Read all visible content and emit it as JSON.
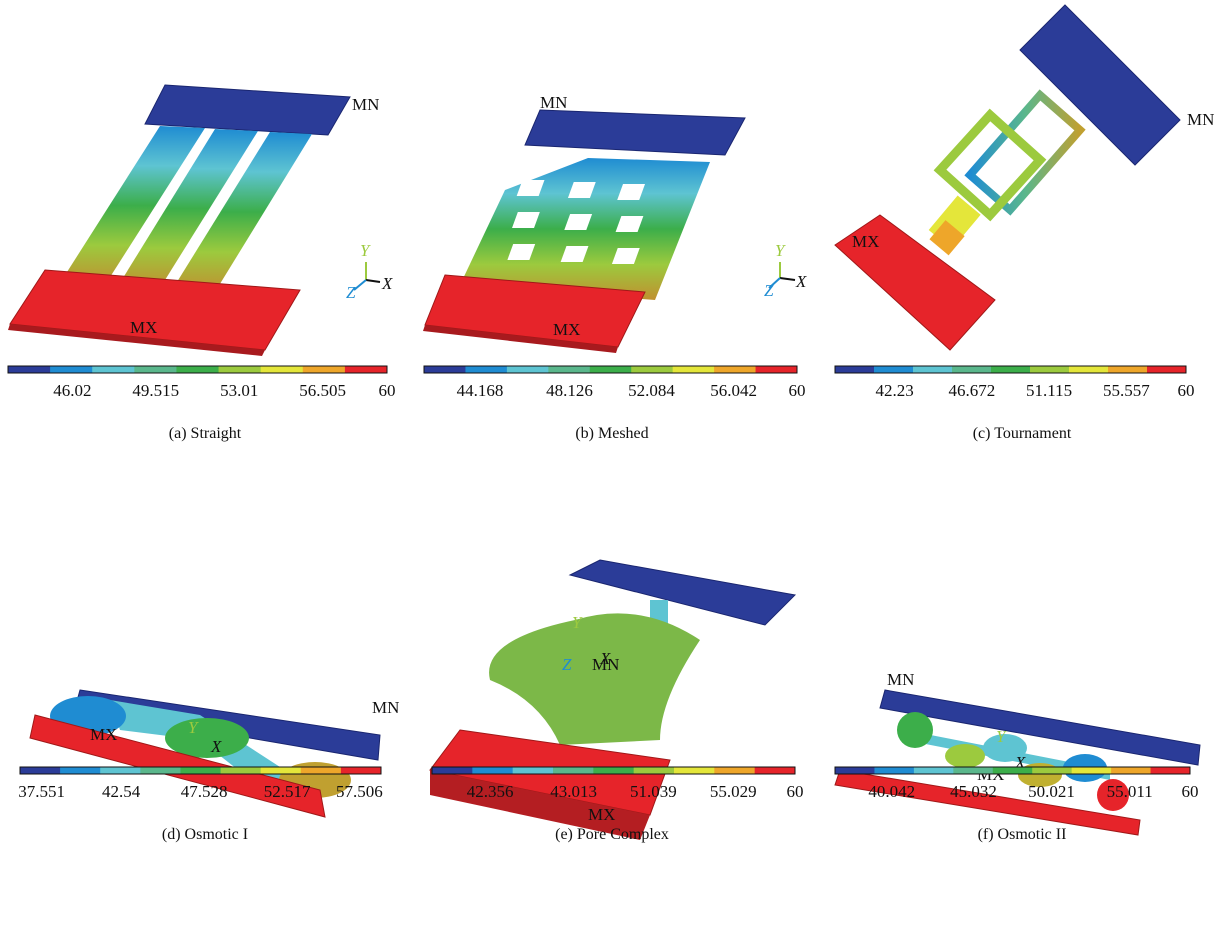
{
  "colorbar_colors": [
    "#2b3c98",
    "#1f8cd2",
    "#5ec4d2",
    "#5ab78c",
    "#3cae4a",
    "#9cca3e",
    "#e4e63a",
    "#eea62a",
    "#e6242a"
  ],
  "panels": [
    {
      "caption": "(a)  Straight",
      "mn": "MN",
      "mx": "MX",
      "axes": {
        "x": "X",
        "y": "Y",
        "z": "Z"
      },
      "ticks": [
        "46.02",
        "49.515",
        "53.01",
        "56.505",
        "60"
      ]
    },
    {
      "caption": "(b)  Meshed",
      "mn": "MN",
      "mx": "MX",
      "axes": {
        "x": "X",
        "y": "Y",
        "z": "Z"
      },
      "ticks": [
        "44.168",
        "48.126",
        "52.084",
        "56.042",
        "60"
      ]
    },
    {
      "caption": "(c)  Tournament",
      "mn": "MN",
      "mx": "MX",
      "ticks": [
        "42.23",
        "46.672",
        "51.115",
        "55.557",
        "60"
      ]
    },
    {
      "caption": "(d)  Osmotic I",
      "mn": "MN",
      "mx": "MX",
      "axes": {
        "x": "X",
        "y": "Y"
      },
      "ticks": [
        "37.551",
        "42.54",
        "47.528",
        "52.517",
        "57.506"
      ]
    },
    {
      "caption": "(e)  Pore Complex",
      "mn": "MN",
      "mx": "MX",
      "axes": {
        "x": "X",
        "y": "Y",
        "z": "Z"
      },
      "ticks": [
        "42.356",
        "43.013",
        "51.039",
        "55.029",
        "60"
      ]
    },
    {
      "caption": "(f)  Osmotic II",
      "mn": "MN",
      "mx": "MX",
      "axes": {
        "x": "X",
        "y": "Y"
      },
      "ticks": [
        "40.042",
        "45.032",
        "50.021",
        "55.011",
        "60"
      ]
    }
  ]
}
